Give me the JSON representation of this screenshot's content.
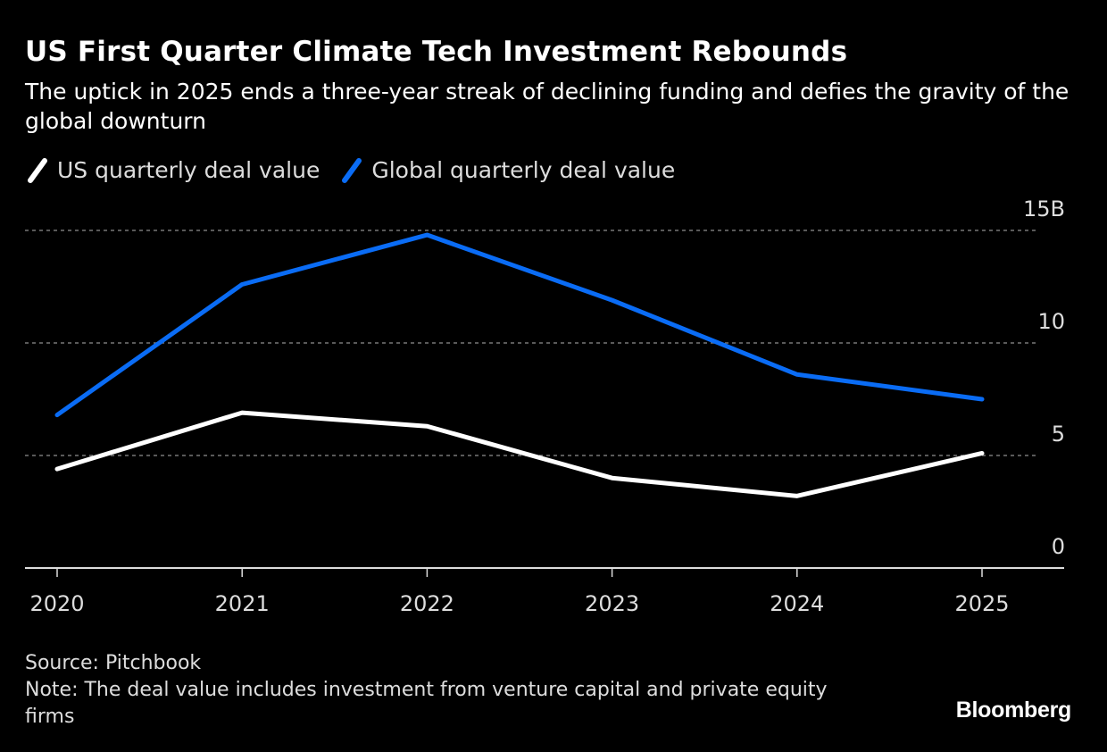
{
  "header": {
    "title": "US First Quarter Climate Tech Investment Rebounds",
    "subtitle": "The uptick in 2025 ends a three-year streak of declining funding and defies the gravity of the global downturn"
  },
  "legend": [
    {
      "label": "US quarterly deal value",
      "color": "#ffffff"
    },
    {
      "label": "Global quarterly deal value",
      "color": "#0a6cf5"
    }
  ],
  "footer": {
    "source": "Source: Pitchbook",
    "note": "Note: The deal value includes investment from venture capital and private equity firms",
    "brand": "Bloomberg"
  },
  "chart_data": {
    "type": "line",
    "title": "US First Quarter Climate Tech Investment Rebounds",
    "xlabel": "",
    "ylabel": "",
    "categories": [
      "2020",
      "2021",
      "2022",
      "2023",
      "2024",
      "2025"
    ],
    "y_ticks": [
      0,
      5,
      10,
      15
    ],
    "y_tick_labels": [
      "0",
      "5",
      "10",
      "15B"
    ],
    "ylim": [
      0,
      15
    ],
    "grid": true,
    "legend_position": "top-left",
    "y_axis_side": "right",
    "series": [
      {
        "name": "US quarterly deal value",
        "color": "#ffffff",
        "values": [
          4.4,
          6.9,
          6.3,
          4.0,
          3.2,
          5.1
        ]
      },
      {
        "name": "Global quarterly deal value",
        "color": "#0a6cf5",
        "values": [
          6.8,
          12.6,
          14.8,
          11.9,
          8.6,
          7.5
        ]
      }
    ]
  }
}
